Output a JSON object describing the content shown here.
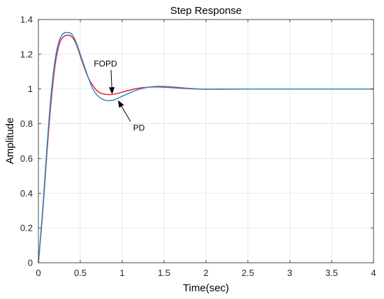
{
  "chart_data": {
    "type": "line",
    "title": "Step Response",
    "xlabel": "Time(sec)",
    "ylabel": "Amplitude",
    "xlim": [
      0,
      4
    ],
    "ylim": [
      0,
      1.4
    ],
    "xticks": [
      0,
      0.5,
      1,
      1.5,
      2,
      2.5,
      3,
      3.5,
      4
    ],
    "xtick_labels": [
      "0",
      "0.5",
      "1",
      "1.5",
      "2",
      "2.5",
      "3",
      "3.5",
      "4"
    ],
    "yticks": [
      0,
      0.2,
      0.4,
      0.6,
      0.8,
      1,
      1.2,
      1.4
    ],
    "ytick_labels": [
      "0",
      "0.2",
      "0.4",
      "0.6",
      "0.8",
      "1",
      "1.2",
      "1.4"
    ],
    "grid": true,
    "series": [
      {
        "color": "#e8202a",
        "x": [
          0,
          0.05,
          0.1,
          0.15,
          0.2,
          0.25,
          0.3,
          0.35,
          0.4,
          0.45,
          0.5,
          0.55,
          0.6,
          0.65,
          0.7,
          0.75,
          0.8,
          0.85,
          0.9,
          0.95,
          1.0,
          1.1,
          1.2,
          1.3,
          1.4,
          1.5,
          1.6,
          1.7,
          1.8,
          1.9,
          2.0,
          2.2,
          2.5,
          3.0,
          3.5,
          4.0
        ],
        "y": [
          0,
          0.28,
          0.62,
          0.92,
          1.14,
          1.26,
          1.3,
          1.31,
          1.3,
          1.26,
          1.19,
          1.12,
          1.06,
          1.02,
          0.99,
          0.975,
          0.97,
          0.968,
          0.97,
          0.975,
          0.982,
          0.995,
          1.005,
          1.01,
          1.012,
          1.011,
          1.008,
          1.005,
          1.002,
          1.0,
          0.999,
          1.0,
          1.0,
          1.0,
          1.0,
          1.0
        ]
      },
      {
        "color": "#2b8cc4",
        "x": [
          0,
          0.05,
          0.1,
          0.15,
          0.2,
          0.25,
          0.3,
          0.35,
          0.4,
          0.45,
          0.5,
          0.55,
          0.6,
          0.65,
          0.7,
          0.75,
          0.8,
          0.85,
          0.9,
          0.95,
          1.0,
          1.1,
          1.2,
          1.3,
          1.4,
          1.5,
          1.6,
          1.7,
          1.8,
          1.9,
          2.0,
          2.2,
          2.5,
          3.0,
          3.5,
          4.0
        ],
        "y": [
          0,
          0.3,
          0.65,
          0.96,
          1.17,
          1.28,
          1.32,
          1.325,
          1.315,
          1.27,
          1.2,
          1.13,
          1.06,
          1.0,
          0.965,
          0.945,
          0.935,
          0.933,
          0.937,
          0.947,
          0.958,
          0.98,
          0.998,
          1.01,
          1.015,
          1.015,
          1.012,
          1.008,
          1.004,
          1.001,
          0.999,
          0.999,
          1.0,
          1.0,
          1.0,
          1.0
        ]
      }
    ],
    "annotations": [
      {
        "text": "FOPD",
        "point": [
          0.88,
          0.97
        ],
        "text_at": [
          0.8,
          1.13
        ]
      },
      {
        "text": "PD",
        "point": [
          0.95,
          0.935
        ],
        "text_at": [
          1.2,
          0.76
        ]
      }
    ]
  }
}
